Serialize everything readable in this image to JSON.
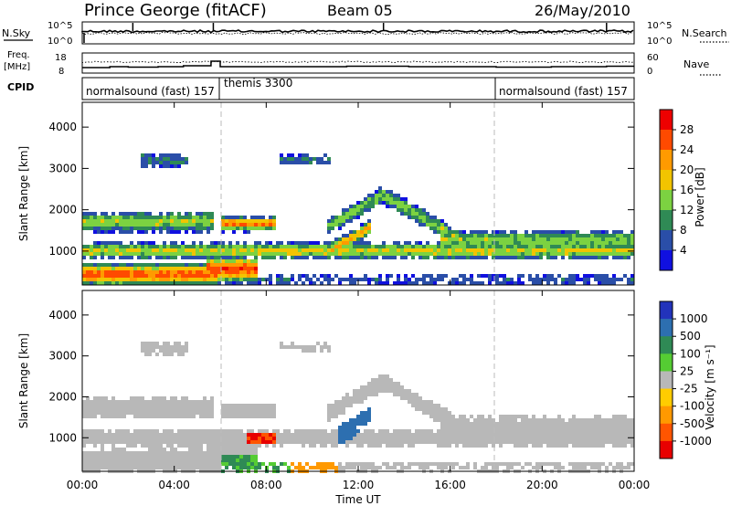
{
  "header": {
    "station": "Prince George (fitACF)",
    "beam": "Beam 05",
    "date": "26/May/2010"
  },
  "strip": {
    "nsky_label": "N.Sky",
    "nsearch_label": "N.Search",
    "noise_ticks_left": [
      "10^5",
      "10^0"
    ],
    "noise_ticks_right": [
      "10^5",
      "10^0"
    ],
    "freq_label": "Freq.",
    "freq_unit": "[MHz]",
    "freq_ticks": [
      "18",
      "8"
    ],
    "nave_label": "Nave",
    "nave_ticks": [
      "60",
      "0"
    ],
    "cpid_label": "CPID",
    "cpid_segments": [
      "normalsound (fast) 157",
      "themis 3300",
      "normalsound (fast) 157"
    ]
  },
  "chart_data": [
    {
      "type": "heatmap",
      "title": "",
      "xlabel": "Time UT",
      "ylabel": "Slant Range [km]",
      "xlim": [
        0,
        24
      ],
      "ylim": [
        180,
        4600
      ],
      "x_ticks": [
        "00:00",
        "04:00",
        "08:00",
        "12:00",
        "16:00",
        "20:00",
        "00:00"
      ],
      "y_ticks": [
        1000,
        2000,
        3000,
        4000
      ],
      "colorbar": {
        "label": "Power [dB]",
        "ticks": [
          "28",
          "24",
          "20",
          "16",
          "12",
          "8",
          "4"
        ],
        "colors": [
          "#ee0000",
          "#ff4a00",
          "#ff9a00",
          "#f2c400",
          "#7cd241",
          "#2f8a55",
          "#2a4ea8",
          "#1010e0"
        ]
      },
      "features": [
        {
          "x": [
            0.0,
            5.8
          ],
          "range_km": [
            300,
            700
          ],
          "level_db": 28
        },
        {
          "x": [
            5.5,
            7.5
          ],
          "range_km": [
            300,
            900
          ],
          "level_db": 28
        },
        {
          "x": [
            6.2,
            8.3
          ],
          "range_km": [
            1550,
            1850
          ],
          "level_db": 26
        },
        {
          "x": [
            0.0,
            24.0
          ],
          "range_km": [
            900,
            1200
          ],
          "level_db": 18
        },
        {
          "x": [
            0.0,
            5.5
          ],
          "range_km": [
            1500,
            2100
          ],
          "level_db": 16
        },
        {
          "x": [
            11.0,
            12.3
          ],
          "range_km": [
            900,
            1500
          ],
          "level_db": 22
        },
        {
          "x": [
            16.0,
            24.0
          ],
          "range_km": [
            1100,
            1500
          ],
          "level_db": 14
        }
      ]
    },
    {
      "type": "heatmap",
      "title": "",
      "xlabel": "Time UT",
      "ylabel": "Slant Range [km]",
      "xlim": [
        0,
        24
      ],
      "ylim": [
        180,
        4600
      ],
      "x_ticks": [
        "00:00",
        "04:00",
        "08:00",
        "12:00",
        "16:00",
        "20:00",
        "00:00"
      ],
      "y_ticks": [
        1000,
        2000,
        3000,
        4000
      ],
      "colorbar": {
        "label": "Velocity [m s⁻¹]",
        "ticks": [
          "1000",
          "500",
          "100",
          "25",
          "-25",
          "-100",
          "-500",
          "-1000"
        ],
        "colors": [
          "#2233bb",
          "#2d6fb0",
          "#2f8a55",
          "#55cc33",
          "#b8b8b8",
          "#ffcc00",
          "#ff9900",
          "#ff5500",
          "#e80000"
        ]
      },
      "features": [
        {
          "x": [
            0.0,
            24.0
          ],
          "range_km": [
            700,
            1200
          ],
          "velocity": 0
        },
        {
          "x": [
            11.0,
            12.8
          ],
          "range_km": [
            1000,
            1700
          ],
          "velocity": 800
        },
        {
          "x": [
            6.0,
            9.0
          ],
          "range_km": [
            250,
            600
          ],
          "velocity": 100
        },
        {
          "x": [
            9.0,
            11.0
          ],
          "range_km": [
            300,
            600
          ],
          "velocity": -150
        }
      ]
    }
  ]
}
